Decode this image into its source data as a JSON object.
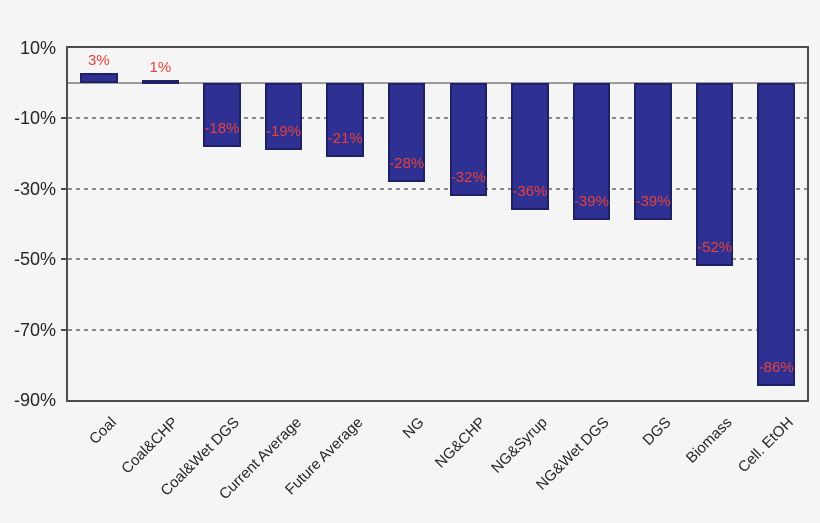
{
  "chart_data": {
    "type": "bar",
    "title": "",
    "xlabel": "",
    "ylabel": "",
    "categories": [
      "Coal",
      "Coal&CHP",
      "Coal&Wet DGS",
      "Current Average",
      "Future Average",
      "NG",
      "NG&CHP",
      "NG&Syrup",
      "NG&Wet DGS",
      "DGS",
      "Biomass",
      "Cell. EtOH"
    ],
    "values": [
      3,
      1,
      -18,
      -19,
      -21,
      -28,
      -32,
      -36,
      -39,
      -39,
      -52,
      -86
    ],
    "data_labels": [
      "3%",
      "1%",
      "-18%",
      "-19%",
      "-21%",
      "-28%",
      "-32%",
      "-36%",
      "-39%",
      "-39%",
      "-52%",
      "-86%"
    ],
    "ylim": [
      10,
      -90
    ],
    "yticks": [
      {
        "label": "10%",
        "value": 10
      },
      {
        "label": "-10%",
        "value": -10
      },
      {
        "label": "-30%",
        "value": -30
      },
      {
        "label": "-50%",
        "value": -50
      },
      {
        "label": "-70%",
        "value": -70
      },
      {
        "label": "-90%",
        "value": -90
      }
    ],
    "gridline_values": [
      -10,
      -30,
      -50,
      -70
    ],
    "zero_line_value": 0,
    "grid_style": "dashed",
    "legend_position": "none",
    "colors": {
      "bar_fill": "#2E3192",
      "bar_border": "#1F2166",
      "data_label": "#E8403A",
      "axis_text": "#262626",
      "grid_line": "#8C8C8C",
      "zero_line": "#9B9B9B",
      "frame": "#4D4D4D",
      "background": "#F5F5F5"
    }
  }
}
